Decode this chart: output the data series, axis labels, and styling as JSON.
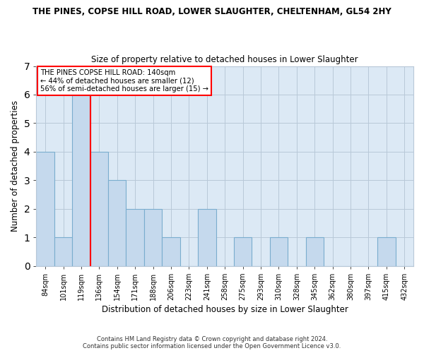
{
  "title": "THE PINES, COPSE HILL ROAD, LOWER SLAUGHTER, CHELTENHAM, GL54 2HY",
  "subtitle": "Size of property relative to detached houses in Lower Slaughter",
  "xlabel": "Distribution of detached houses by size in Lower Slaughter",
  "ylabel": "Number of detached properties",
  "categories": [
    "84sqm",
    "101sqm",
    "119sqm",
    "136sqm",
    "154sqm",
    "171sqm",
    "188sqm",
    "206sqm",
    "223sqm",
    "241sqm",
    "258sqm",
    "275sqm",
    "293sqm",
    "310sqm",
    "328sqm",
    "345sqm",
    "362sqm",
    "380sqm",
    "397sqm",
    "415sqm",
    "432sqm"
  ],
  "values": [
    4,
    1,
    6,
    4,
    3,
    2,
    2,
    1,
    0,
    2,
    0,
    1,
    0,
    1,
    0,
    1,
    0,
    0,
    0,
    1,
    0
  ],
  "bar_color": "#c5d9ed",
  "bar_edge_color": "#7aadce",
  "red_line_index": 3,
  "ylim": [
    0,
    7
  ],
  "yticks": [
    0,
    1,
    2,
    3,
    4,
    5,
    6,
    7
  ],
  "annotation_line1": "THE PINES COPSE HILL ROAD: 140sqm",
  "annotation_line2": "← 44% of detached houses are smaller (12)",
  "annotation_line3": "56% of semi-detached houses are larger (15) →",
  "footer1": "Contains HM Land Registry data © Crown copyright and database right 2024.",
  "footer2": "Contains public sector information licensed under the Open Government Licence v3.0.",
  "bg_color": "#ffffff",
  "plot_bg_color": "#dce9f5"
}
